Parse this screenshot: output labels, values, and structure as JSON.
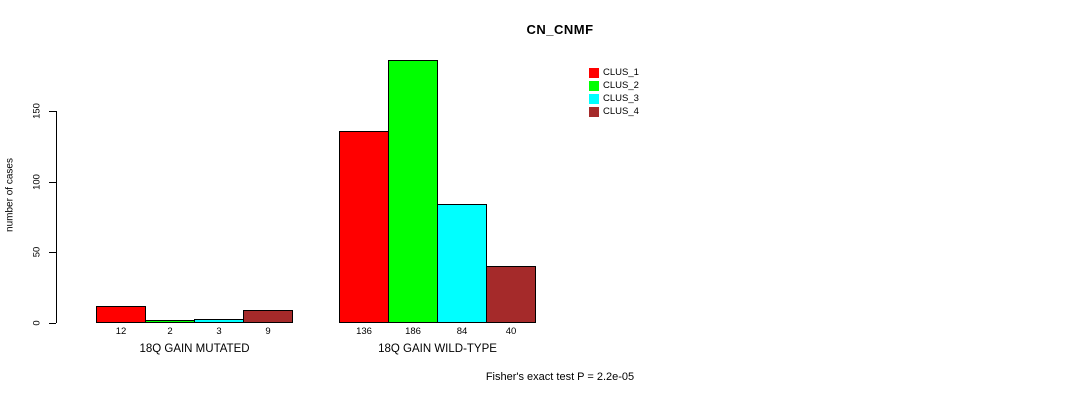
{
  "chart_data": {
    "type": "bar",
    "title": "CN_CNMF",
    "ylabel": "number of cases",
    "xlabel": "",
    "ylim": [
      0,
      150
    ],
    "yticks": [
      0,
      50,
      100,
      150
    ],
    "grid": false,
    "legend_position": "top-right",
    "categories": [
      "18Q GAIN MUTATED",
      "18Q GAIN WILD-TYPE"
    ],
    "series": [
      {
        "name": "CLUS_1",
        "color": "#FF0000",
        "values": [
          12,
          136
        ]
      },
      {
        "name": "CLUS_2",
        "color": "#00FF00",
        "values": [
          2,
          186
        ]
      },
      {
        "name": "CLUS_3",
        "color": "#00FFFF",
        "values": [
          3,
          84
        ]
      },
      {
        "name": "CLUS_4",
        "color": "#A52A2A",
        "values": [
          9,
          40
        ]
      }
    ],
    "bar_value_labels": {
      "18Q GAIN MUTATED": [
        12,
        2,
        3,
        9
      ],
      "18Q GAIN WILD-TYPE": [
        136,
        186,
        84,
        40
      ]
    },
    "annotation": "Fisher's exact test P = 2.2e-05"
  }
}
